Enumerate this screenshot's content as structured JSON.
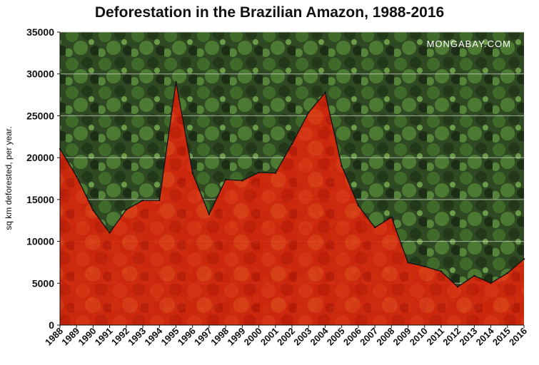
{
  "chart_data": {
    "type": "area",
    "title": "Deforestation in the Brazilian Amazon, 1988-2016",
    "watermark": "MONGABAY.COM",
    "xlabel": "",
    "ylabel": "sq km deforested, per year.",
    "ylim": [
      0,
      35000
    ],
    "yticks": [
      0,
      5000,
      10000,
      15000,
      20000,
      25000,
      30000,
      35000
    ],
    "grid": true,
    "fill_color": "#e0240a",
    "background_color": "#2f4a22",
    "x": [
      "1988",
      "1989",
      "1990",
      "1991",
      "1992",
      "1993",
      "1994",
      "1995",
      "1996",
      "1997",
      "1998",
      "1999",
      "2000",
      "2001",
      "2002",
      "2003",
      "2004",
      "2005",
      "2006",
      "2007",
      "2008",
      "2009",
      "2010",
      "2011",
      "2012",
      "2013",
      "2014",
      "2015",
      "2016"
    ],
    "values": [
      21050,
      17770,
      13730,
      11030,
      13786,
      14896,
      14896,
      29059,
      18161,
      13227,
      17383,
      17259,
      18226,
      18165,
      21651,
      25396,
      27772,
      19014,
      14286,
      11651,
      12911,
      7464,
      7000,
      6418,
      4571,
      5891,
      5012,
      6207,
      7893
    ]
  }
}
